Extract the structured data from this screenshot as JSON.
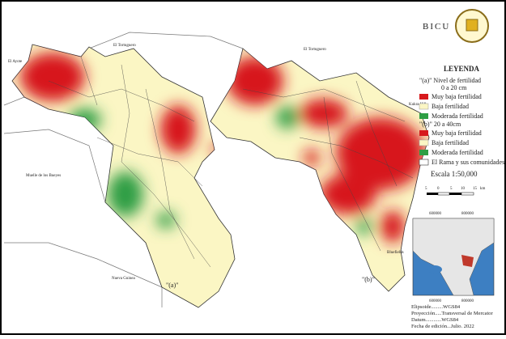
{
  "header": {
    "logo_text": "BICU"
  },
  "map_a": {
    "panel_label": "\"(a)\"",
    "places": [
      "El Ayote",
      "El Tortuguero",
      "Muelle de los Bueyes",
      "Nueva Guinea"
    ]
  },
  "map_b": {
    "panel_label": "\"(b)\"",
    "places": [
      "El Tortuguero",
      "Kukra Hill",
      "Bluefields"
    ]
  },
  "legend": {
    "title": "LEYENDA",
    "group_a": {
      "title": "\"(a)\" Nivel de fertilidad",
      "subtitle": "0 a 20 cm",
      "items": [
        "Muy baja fertilidad",
        "Baja fertilidad",
        "Moderada fertilidad"
      ]
    },
    "group_b": {
      "title": "\"(b)\" 20 a 40cm",
      "items": [
        "Muy baja fertilidad",
        "Baja fertilidad",
        "Moderada fertilidad",
        "El Rama y sus comunidades"
      ]
    }
  },
  "scale": {
    "title": "Escala 1:50,000",
    "labels": [
      "5",
      "0",
      "5",
      "10",
      "15"
    ],
    "unit": "km"
  },
  "inset": {
    "top_labels": [
      "600000",
      "800000"
    ],
    "bottom_labels": [
      "600000",
      "800000"
    ]
  },
  "footer": {
    "lines": [
      "Elipsoide.........WGS84",
      "Proyección.....Transversal de Mercator",
      "Datum............WGS84",
      "Fecha de edición...Julio. 2022"
    ]
  }
}
